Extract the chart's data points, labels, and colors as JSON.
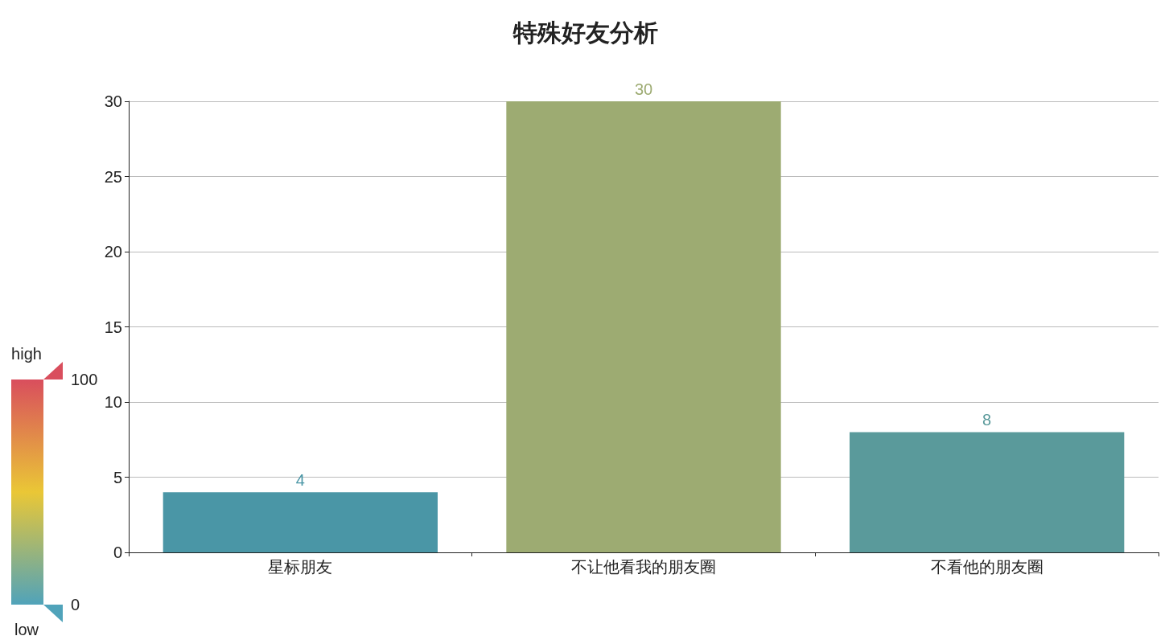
{
  "chart_data": {
    "type": "bar",
    "title": "特殊好友分析",
    "categories": [
      "星标朋友",
      "不让他看我的朋友圈",
      "不看他的朋友圈"
    ],
    "values": [
      4,
      30,
      8
    ],
    "colors": [
      "#4a96a6",
      "#9dab72",
      "#5a9a9b"
    ],
    "ylim": [
      0,
      30
    ],
    "yticks": [
      0,
      5,
      10,
      15,
      20,
      25,
      30
    ],
    "grid": "y",
    "data_labels": true,
    "clim": [
      0,
      100
    ],
    "cticks": [
      0,
      100
    ],
    "annotations": [
      "high",
      "low"
    ]
  }
}
